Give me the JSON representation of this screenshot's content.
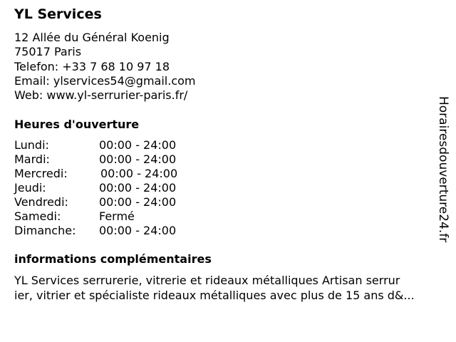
{
  "business": {
    "name": "YL Services",
    "address_line1": "12 Allée du Général Koenig",
    "address_line2": "75017 Paris",
    "phone": "Telefon: +33 7 68 10 97 18",
    "email": "Email: ylservices54@gmail.com",
    "web": "Web: www.yl-serrurier-paris.fr/"
  },
  "hours": {
    "heading": "Heures d'ouverture",
    "days": [
      {
        "day": "Lundi:",
        "time": "00:00 - 24:00"
      },
      {
        "day": "Mardi:",
        "time": "00:00 - 24:00"
      },
      {
        "day": "Mercredi:",
        "time": "00:00 - 24:00"
      },
      {
        "day": "Jeudi:",
        "time": "00:00 - 24:00"
      },
      {
        "day": "Vendredi:",
        "time": "00:00 - 24:00"
      },
      {
        "day": "Samedi:",
        "time": "Fermé"
      },
      {
        "day": "Dimanche:",
        "time": "00:00 - 24:00"
      }
    ]
  },
  "info": {
    "heading": "informations complémentaires",
    "lines": [
      "YL Services serrurerie, vitrerie et rideaux métalliques Artisan serrur",
      "ier, vitrier et spécialiste rideaux métalliques avec plus de 15 ans d&..."
    ]
  },
  "watermark": "Horairesdouverture24.fr"
}
